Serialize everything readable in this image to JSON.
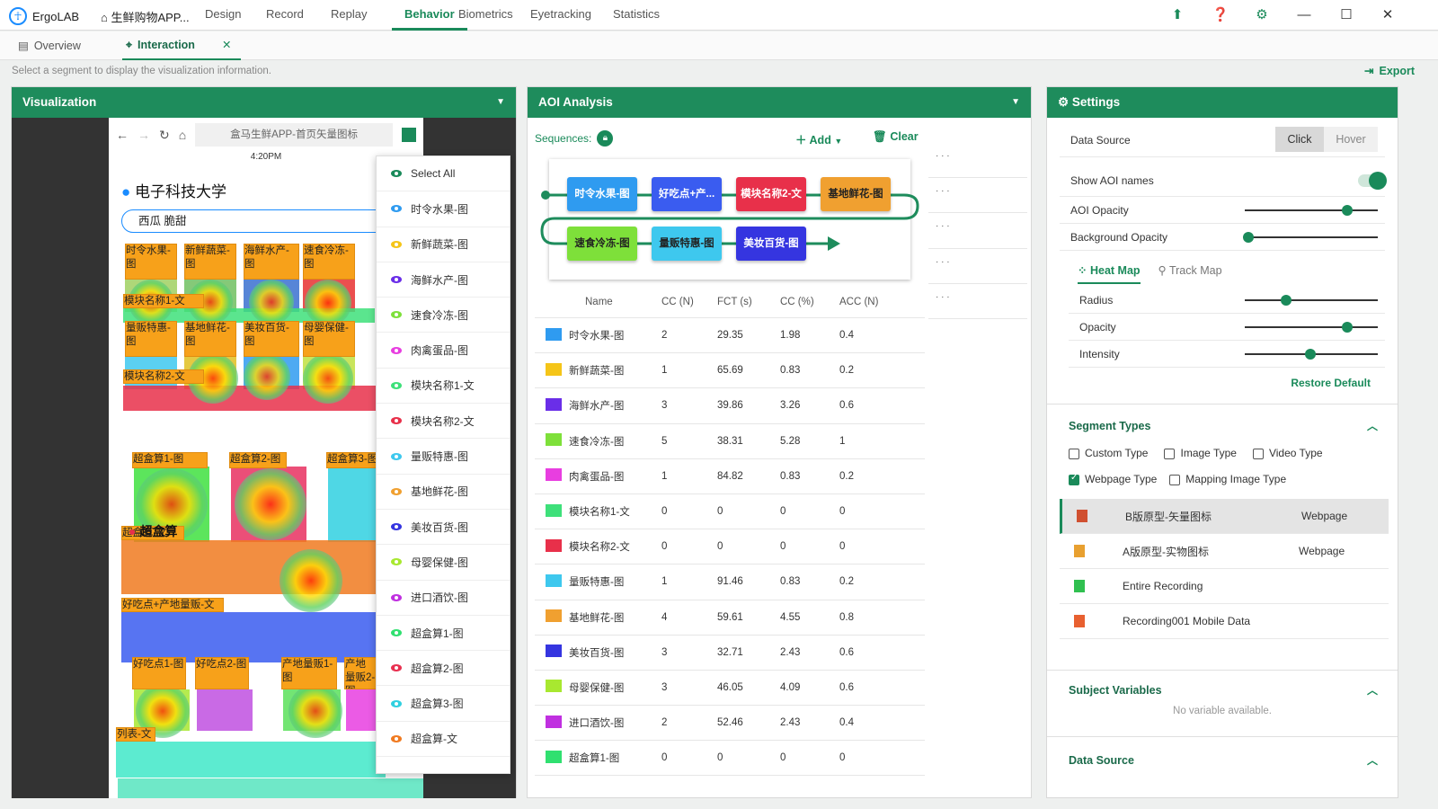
{
  "app": {
    "name": "ErgoLAB",
    "project": "生鲜购物APP..."
  },
  "nav": [
    "Design",
    "Record",
    "Replay",
    "Behavior",
    "Biometrics",
    "Eyetracking",
    "Statistics"
  ],
  "nav_active": "Behavior",
  "subtabs": {
    "overview": "Overview",
    "interaction": "Interaction"
  },
  "hint": "Select a segment to display the visualization information.",
  "export_label": "Export",
  "viz": {
    "title": "Visualization",
    "url": "盒马生鲜APP-首页矢量图标",
    "time": "4:20PM",
    "location": "电子科技大学",
    "search": "西瓜 脆甜",
    "aoi_labels": [
      "时令水果-图",
      "新鲜蔬菜-图",
      "海鲜水产-图",
      "速食冷冻-图",
      "模块名称1-文",
      "量贩特惠-图",
      "基地鲜花-图",
      "美妆百货-图",
      "母婴保健-图",
      "模块名称2-文",
      "超盒算1-图",
      "超盒算2-图",
      "超盒算3-图",
      "超盒算-文",
      "好吃点+产地量贩-文",
      "好吃点1-图",
      "好吃点2-图",
      "产地量贩1-图",
      "产地量贩2-图",
      "列表-文"
    ],
    "section": "超盒算",
    "dropdown": {
      "select_all": "Select All",
      "items": [
        {
          "label": "时令水果-图",
          "color": "#2f9bf0"
        },
        {
          "label": "新鲜蔬菜-图",
          "color": "#f5c518"
        },
        {
          "label": "海鲜水产-图",
          "color": "#6a2ee8"
        },
        {
          "label": "速食冷冻-图",
          "color": "#7ee03a"
        },
        {
          "label": "肉禽蛋品-图",
          "color": "#e83ee0"
        },
        {
          "label": "模块名称1-文",
          "color": "#3ee07a"
        },
        {
          "label": "模块名称2-文",
          "color": "#e8304a"
        },
        {
          "label": "量贩特惠-图",
          "color": "#3ec8ee"
        },
        {
          "label": "基地鲜花-图",
          "color": "#f0a030"
        },
        {
          "label": "美妆百货-图",
          "color": "#3535e0"
        },
        {
          "label": "母婴保健-图",
          "color": "#a8e830"
        },
        {
          "label": "进口酒饮-图",
          "color": "#c030e0"
        },
        {
          "label": "超盒算1-图",
          "color": "#30e070"
        },
        {
          "label": "超盒算2-图",
          "color": "#e83050"
        },
        {
          "label": "超盒算3-图",
          "color": "#30d0e0"
        },
        {
          "label": "超盒算-文",
          "color": "#f07a20"
        }
      ]
    }
  },
  "aoi": {
    "title": "AOI Analysis",
    "sequences_label": "Sequences:",
    "add_label": "Add",
    "clear_label": "Clear",
    "sequence": [
      {
        "label": "时令水果-图",
        "color": "#2f9bf0"
      },
      {
        "label": "好吃点+产...",
        "color": "#3a5cf0"
      },
      {
        "label": "模块名称2-文",
        "color": "#e8304a"
      },
      {
        "label": "基地鲜花-图",
        "color": "#f0a030"
      },
      {
        "label": "速食冷冻-图",
        "color": "#7ee03a"
      },
      {
        "label": "量贩特惠-图",
        "color": "#3ec8ee"
      },
      {
        "label": "美妆百货-图",
        "color": "#3535e0"
      }
    ],
    "columns": [
      "Name",
      "CC (N)",
      "FCT (s)",
      "CC (%)",
      "ACC (N)"
    ],
    "rows": [
      {
        "color": "#2f9bf0",
        "name": "时令水果-图",
        "cc": "2",
        "fct": "29.35",
        "ccp": "1.98",
        "acc": "0.4"
      },
      {
        "color": "#f5c518",
        "name": "新鲜蔬菜-图",
        "cc": "1",
        "fct": "65.69",
        "ccp": "0.83",
        "acc": "0.2"
      },
      {
        "color": "#6a2ee8",
        "name": "海鲜水产-图",
        "cc": "3",
        "fct": "39.86",
        "ccp": "3.26",
        "acc": "0.6"
      },
      {
        "color": "#7ee03a",
        "name": "速食冷冻-图",
        "cc": "5",
        "fct": "38.31",
        "ccp": "5.28",
        "acc": "1"
      },
      {
        "color": "#e83ee0",
        "name": "肉禽蛋品-图",
        "cc": "1",
        "fct": "84.82",
        "ccp": "0.83",
        "acc": "0.2"
      },
      {
        "color": "#3ee07a",
        "name": "模块名称1-文",
        "cc": "0",
        "fct": "0",
        "ccp": "0",
        "acc": "0"
      },
      {
        "color": "#e8304a",
        "name": "模块名称2-文",
        "cc": "0",
        "fct": "0",
        "ccp": "0",
        "acc": "0"
      },
      {
        "color": "#3ec8ee",
        "name": "量贩特惠-图",
        "cc": "1",
        "fct": "91.46",
        "ccp": "0.83",
        "acc": "0.2"
      },
      {
        "color": "#f0a030",
        "name": "基地鲜花-图",
        "cc": "4",
        "fct": "59.61",
        "ccp": "4.55",
        "acc": "0.8"
      },
      {
        "color": "#3535e0",
        "name": "美妆百货-图",
        "cc": "3",
        "fct": "32.71",
        "ccp": "2.43",
        "acc": "0.6"
      },
      {
        "color": "#a8e830",
        "name": "母婴保健-图",
        "cc": "3",
        "fct": "46.05",
        "ccp": "4.09",
        "acc": "0.6"
      },
      {
        "color": "#c030e0",
        "name": "进口酒饮-图",
        "cc": "2",
        "fct": "52.46",
        "ccp": "2.43",
        "acc": "0.4"
      },
      {
        "color": "#30e070",
        "name": "超盒算1-图",
        "cc": "0",
        "fct": "0",
        "ccp": "0",
        "acc": "0"
      }
    ]
  },
  "settings": {
    "title": "Settings",
    "data_source": "Data Source",
    "click": "Click",
    "hover": "Hover",
    "show_aoi_names": "Show AOI names",
    "aoi_opacity": "AOI Opacity",
    "aoi_opacity_level": 0.77,
    "background_opacity": "Background Opacity",
    "background_opacity_level": 0.03,
    "heat_map": "Heat Map",
    "track_map": "Track Map",
    "radius": "Radius",
    "radius_level": 0.31,
    "opacity": "Opacity",
    "opacity_level": 0.77,
    "intensity": "Intensity",
    "intensity_level": 0.49,
    "restore_default": "Restore Default",
    "segment_types": "Segment Types",
    "custom_type": "Custom Type",
    "image_type": "Image Type",
    "video_type": "Video Type",
    "webpage_type": "Webpage Type",
    "mapping_image_type": "Mapping Image Type",
    "segments": [
      {
        "name": "B版原型-矢量图标",
        "type": "Webpage"
      },
      {
        "name": "A版原型-实物图标",
        "type": "Webpage"
      },
      {
        "name": "Entire Recording",
        "type": ""
      },
      {
        "name": "Recording001 Mobile Data",
        "type": ""
      }
    ],
    "subject_variables": "Subject Variables",
    "no_variable": "No variable available.",
    "data_source_section": "Data Source"
  }
}
